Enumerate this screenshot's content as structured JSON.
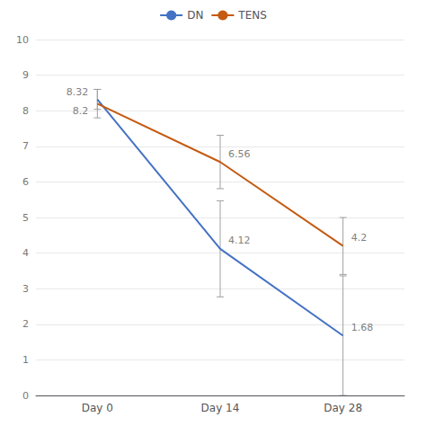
{
  "chart_data": {
    "type": "line",
    "categories": [
      "Day 0",
      "Day 14",
      "Day 28"
    ],
    "series": [
      {
        "name": "DN",
        "color": "#4472C4",
        "values": [
          8.32,
          4.12,
          1.68
        ],
        "errors_up": [
          0.28,
          1.35,
          1.68
        ],
        "errors_down": [
          0.28,
          1.35,
          1.68
        ]
      },
      {
        "name": "TENS",
        "color": "#C55A11",
        "values": [
          8.2,
          6.56,
          4.2
        ],
        "errors_up": [
          0.4,
          0.75,
          0.8
        ],
        "errors_down": [
          0.4,
          0.75,
          0.8
        ]
      }
    ],
    "ylim": [
      0,
      10
    ],
    "yticks": [
      0,
      1,
      2,
      3,
      4,
      5,
      6,
      7,
      8,
      9,
      10
    ],
    "grid": true,
    "legend": "top",
    "data_labels": true
  }
}
